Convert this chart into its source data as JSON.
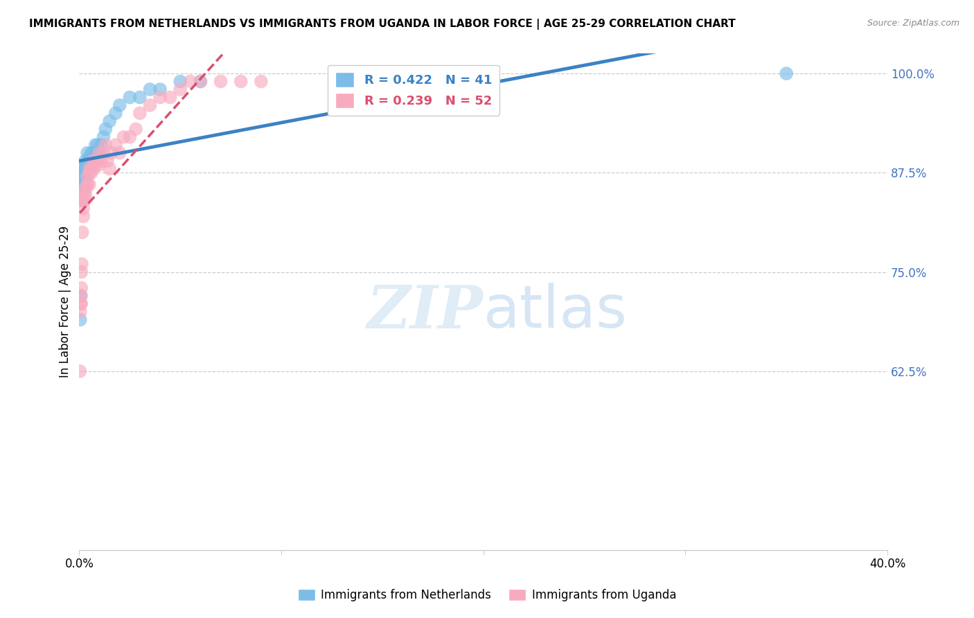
{
  "title": "IMMIGRANTS FROM NETHERLANDS VS IMMIGRANTS FROM UGANDA IN LABOR FORCE | AGE 25-29 CORRELATION CHART",
  "source": "Source: ZipAtlas.com",
  "ylabel": "In Labor Force | Age 25-29",
  "xlim": [
    0.0,
    0.4
  ],
  "ylim": [
    0.4,
    1.025
  ],
  "ytick_vals": [
    0.625,
    0.75,
    0.875,
    1.0
  ],
  "ytick_labels": [
    "62.5%",
    "75.0%",
    "87.5%",
    "100.0%"
  ],
  "netherlands_R": 0.422,
  "netherlands_N": 41,
  "uganda_R": 0.239,
  "uganda_N": 52,
  "netherlands_color": "#7bbde8",
  "uganda_color": "#f8aabf",
  "netherlands_line_color": "#3b82c4",
  "uganda_line_color": "#d94f6e",
  "watermark_zip": "ZIP",
  "watermark_atlas": "atlas",
  "netherlands_x": [
    0.0005,
    0.0008,
    0.001,
    0.001,
    0.0012,
    0.0015,
    0.002,
    0.002,
    0.002,
    0.0025,
    0.003,
    0.003,
    0.003,
    0.003,
    0.004,
    0.004,
    0.004,
    0.005,
    0.005,
    0.005,
    0.006,
    0.006,
    0.007,
    0.007,
    0.008,
    0.008,
    0.009,
    0.01,
    0.011,
    0.012,
    0.013,
    0.015,
    0.018,
    0.02,
    0.025,
    0.03,
    0.035,
    0.04,
    0.05,
    0.06,
    0.35
  ],
  "netherlands_y": [
    0.69,
    0.72,
    0.84,
    0.86,
    0.87,
    0.85,
    0.875,
    0.86,
    0.88,
    0.875,
    0.87,
    0.88,
    0.885,
    0.89,
    0.88,
    0.885,
    0.9,
    0.88,
    0.89,
    0.895,
    0.89,
    0.9,
    0.895,
    0.9,
    0.9,
    0.91,
    0.91,
    0.9,
    0.91,
    0.92,
    0.93,
    0.94,
    0.95,
    0.96,
    0.97,
    0.97,
    0.98,
    0.98,
    0.99,
    0.99,
    1.0
  ],
  "uganda_x": [
    0.0003,
    0.0005,
    0.0006,
    0.0008,
    0.001,
    0.001,
    0.001,
    0.0012,
    0.0015,
    0.002,
    0.002,
    0.002,
    0.0025,
    0.003,
    0.003,
    0.003,
    0.004,
    0.004,
    0.004,
    0.005,
    0.005,
    0.005,
    0.006,
    0.006,
    0.007,
    0.007,
    0.008,
    0.008,
    0.009,
    0.01,
    0.01,
    0.011,
    0.012,
    0.013,
    0.014,
    0.015,
    0.016,
    0.018,
    0.02,
    0.022,
    0.025,
    0.028,
    0.03,
    0.035,
    0.04,
    0.045,
    0.05,
    0.055,
    0.06,
    0.07,
    0.08,
    0.09
  ],
  "uganda_y": [
    0.625,
    0.7,
    0.71,
    0.72,
    0.71,
    0.73,
    0.75,
    0.76,
    0.8,
    0.82,
    0.83,
    0.84,
    0.84,
    0.845,
    0.85,
    0.855,
    0.86,
    0.86,
    0.87,
    0.86,
    0.875,
    0.88,
    0.875,
    0.88,
    0.88,
    0.89,
    0.885,
    0.89,
    0.89,
    0.885,
    0.9,
    0.89,
    0.9,
    0.91,
    0.89,
    0.88,
    0.9,
    0.91,
    0.9,
    0.92,
    0.92,
    0.93,
    0.95,
    0.96,
    0.97,
    0.97,
    0.98,
    0.99,
    0.99,
    0.99,
    0.99,
    0.99
  ]
}
